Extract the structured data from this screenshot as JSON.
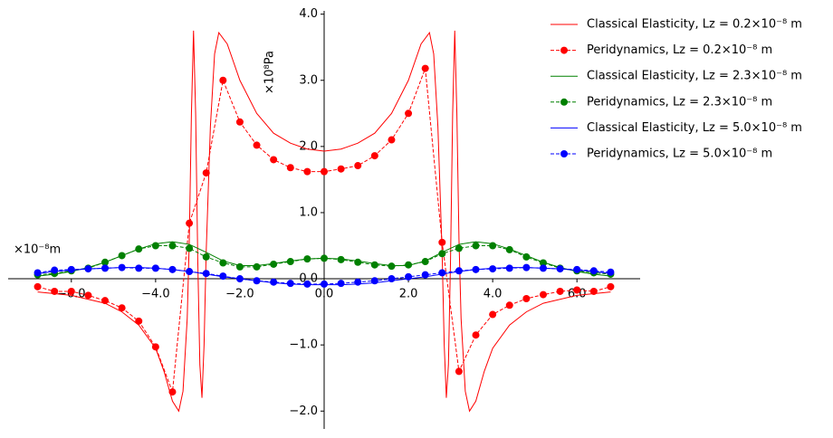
{
  "chart_data": {
    "type": "line",
    "xlabel": "×10⁻⁸m",
    "ylabel": "×10⁸Pa",
    "xlim": [
      -7.5,
      7.5
    ],
    "ylim": [
      -2.27,
      4.05
    ],
    "xticks": [
      {
        "value": -6,
        "label": "−6.0"
      },
      {
        "value": -4,
        "label": "−4.0"
      },
      {
        "value": -2,
        "label": "−2.0"
      },
      {
        "value": 0,
        "label": "0.0"
      },
      {
        "value": 2,
        "label": "2.0"
      },
      {
        "value": 4,
        "label": "4.0"
      },
      {
        "value": 6,
        "label": "6.0"
      }
    ],
    "yticks": [
      {
        "value": -2,
        "label": "−2.0"
      },
      {
        "value": -1,
        "label": "−1.0"
      },
      {
        "value": 0,
        "label": "0.0"
      },
      {
        "value": 1,
        "label": "1.0"
      },
      {
        "value": 2,
        "label": "2.0"
      },
      {
        "value": 3,
        "label": "3.0"
      },
      {
        "value": 4,
        "label": "4.0"
      }
    ],
    "legend": "upper right",
    "series": [
      {
        "name": "Classical Elasticity, Lz = 0.2×10⁻⁸ m",
        "color": "#ff0000",
        "style": "solid",
        "marker": false,
        "x": [
          -6.8,
          -6.0,
          -5.2,
          -4.8,
          -4.4,
          -4.0,
          -3.8,
          -3.6,
          -3.45,
          -3.35,
          -3.25,
          -3.2,
          -3.15,
          -3.1,
          -3.05,
          -3.0,
          -2.95,
          -2.9,
          -2.85,
          -2.8,
          -2.7,
          -2.6,
          -2.5,
          -2.3,
          -2.0,
          -1.6,
          -1.2,
          -0.8,
          -0.4,
          0,
          0.4,
          0.8,
          1.2,
          1.6,
          2.0,
          2.3,
          2.5,
          2.6,
          2.7,
          2.8,
          2.85,
          2.9,
          2.95,
          3.0,
          3.05,
          3.1,
          3.15,
          3.2,
          3.25,
          3.35,
          3.45,
          3.6,
          3.8,
          4.0,
          4.4,
          4.8,
          5.2,
          6.0,
          6.8
        ],
        "values": [
          -0.2,
          -0.25,
          -0.37,
          -0.5,
          -0.7,
          -1.05,
          -1.4,
          -1.85,
          -2.0,
          -1.7,
          -0.6,
          0.6,
          2.5,
          3.75,
          2.5,
          0.3,
          -1.3,
          -1.8,
          -1.0,
          0.4,
          2.3,
          3.4,
          3.72,
          3.55,
          3.0,
          2.5,
          2.2,
          2.05,
          1.96,
          1.93,
          1.96,
          2.05,
          2.2,
          2.5,
          3.0,
          3.55,
          3.72,
          3.4,
          2.3,
          0.4,
          -1.0,
          -1.8,
          -1.3,
          0.3,
          2.5,
          3.75,
          2.5,
          0.6,
          -0.6,
          -1.7,
          -2.0,
          -1.85,
          -1.4,
          -1.05,
          -0.7,
          -0.5,
          -0.37,
          -0.25,
          -0.2
        ]
      },
      {
        "name": "Peridynamics, Lz = 0.2×10⁻⁸ m",
        "color": "#ff0000",
        "style": "dashed",
        "marker": true,
        "x": [
          -6.8,
          -6.4,
          -6.0,
          -5.6,
          -5.2,
          -4.8,
          -4.4,
          -4.0,
          -3.6,
          -3.2,
          -2.8,
          -2.4,
          -2.0,
          -1.6,
          -1.2,
          -0.8,
          -0.4,
          0,
          0.4,
          0.8,
          1.2,
          1.6,
          2.0,
          2.4,
          2.8,
          3.2,
          3.6,
          4.0,
          4.4,
          4.8,
          5.2,
          5.6,
          6.0,
          6.4,
          6.8
        ],
        "values": [
          -0.12,
          -0.19,
          -0.19,
          -0.25,
          -0.33,
          -0.44,
          -0.64,
          -1.03,
          -1.71,
          0.84,
          1.6,
          3.0,
          2.37,
          2.02,
          1.8,
          1.68,
          1.62,
          1.62,
          1.66,
          1.71,
          1.86,
          2.1,
          2.5,
          3.18,
          0.55,
          -1.4,
          -0.85,
          -0.54,
          -0.4,
          -0.3,
          -0.24,
          -0.19,
          -0.17,
          -0.19,
          -0.12
        ]
      },
      {
        "name": "Classical Elasticity, Lz = 2.3×10⁻⁸ m",
        "color": "#008000",
        "style": "solid",
        "marker": false,
        "x": [
          -6.8,
          -6.4,
          -6.0,
          -5.6,
          -5.2,
          -4.8,
          -4.4,
          -4.0,
          -3.6,
          -3.2,
          -2.8,
          -2.4,
          -2.0,
          -1.6,
          -1.2,
          -0.8,
          -0.4,
          0,
          0.4,
          0.8,
          1.2,
          1.6,
          2.0,
          2.4,
          2.8,
          3.2,
          3.6,
          4.0,
          4.4,
          4.8,
          5.2,
          5.6,
          6.0,
          6.4,
          6.8
        ],
        "values": [
          0.04,
          0.07,
          0.11,
          0.17,
          0.25,
          0.35,
          0.45,
          0.53,
          0.56,
          0.52,
          0.4,
          0.27,
          0.2,
          0.2,
          0.23,
          0.27,
          0.3,
          0.31,
          0.3,
          0.27,
          0.23,
          0.2,
          0.2,
          0.27,
          0.4,
          0.52,
          0.56,
          0.53,
          0.45,
          0.35,
          0.25,
          0.17,
          0.11,
          0.07,
          0.04
        ]
      },
      {
        "name": "Peridynamics, Lz = 2.3×10⁻⁸ m",
        "color": "#008000",
        "style": "dashed",
        "marker": true,
        "x": [
          -6.8,
          -6.4,
          -6.0,
          -5.6,
          -5.2,
          -4.8,
          -4.4,
          -4.0,
          -3.6,
          -3.2,
          -2.8,
          -2.4,
          -2.0,
          -1.6,
          -1.2,
          -0.8,
          -0.4,
          0,
          0.4,
          0.8,
          1.2,
          1.6,
          2.0,
          2.4,
          2.8,
          3.2,
          3.6,
          4.0,
          4.4,
          4.8,
          5.2,
          5.6,
          6.0,
          6.4,
          6.8
        ],
        "values": [
          0.06,
          0.08,
          0.12,
          0.16,
          0.25,
          0.35,
          0.45,
          0.5,
          0.5,
          0.46,
          0.33,
          0.24,
          0.18,
          0.18,
          0.22,
          0.26,
          0.3,
          0.31,
          0.29,
          0.25,
          0.21,
          0.19,
          0.21,
          0.26,
          0.38,
          0.46,
          0.5,
          0.5,
          0.44,
          0.33,
          0.24,
          0.16,
          0.12,
          0.09,
          0.07
        ]
      },
      {
        "name": "Classical Elasticity, Lz = 5.0×10⁻⁸ m",
        "color": "#0000ff",
        "style": "solid",
        "marker": false,
        "x": [
          -6.8,
          -6.4,
          -6.0,
          -5.6,
          -5.2,
          -4.8,
          -4.4,
          -4.0,
          -3.6,
          -3.2,
          -2.8,
          -2.4,
          -2.0,
          -1.6,
          -1.2,
          -0.8,
          -0.4,
          0,
          0.4,
          0.8,
          1.2,
          1.6,
          2.0,
          2.4,
          2.8,
          3.2,
          3.6,
          4.0,
          4.4,
          4.8,
          5.2,
          5.6,
          6.0,
          6.4,
          6.8
        ],
        "values": [
          0.08,
          0.11,
          0.13,
          0.15,
          0.16,
          0.17,
          0.17,
          0.16,
          0.14,
          0.11,
          0.07,
          0.03,
          0.0,
          -0.03,
          -0.06,
          -0.08,
          -0.09,
          -0.09,
          -0.09,
          -0.08,
          -0.06,
          -0.03,
          0.0,
          0.03,
          0.07,
          0.11,
          0.14,
          0.16,
          0.17,
          0.17,
          0.16,
          0.15,
          0.13,
          0.11,
          0.08
        ]
      },
      {
        "name": "Peridynamics, Lz = 5.0×10⁻⁸ m",
        "color": "#0000ff",
        "style": "dashed",
        "marker": true,
        "x": [
          -6.8,
          -6.4,
          -6.0,
          -5.6,
          -5.2,
          -4.8,
          -4.4,
          -4.0,
          -3.6,
          -3.2,
          -2.8,
          -2.4,
          -2.0,
          -1.6,
          -1.2,
          -0.8,
          -0.4,
          0,
          0.4,
          0.8,
          1.2,
          1.6,
          2.0,
          2.4,
          2.8,
          3.2,
          3.6,
          4.0,
          4.4,
          4.8,
          5.2,
          5.6,
          6.0,
          6.4,
          6.8
        ],
        "values": [
          0.09,
          0.13,
          0.14,
          0.15,
          0.16,
          0.17,
          0.16,
          0.16,
          0.14,
          0.11,
          0.08,
          0.04,
          0.0,
          -0.03,
          -0.05,
          -0.07,
          -0.08,
          -0.08,
          -0.07,
          -0.05,
          -0.03,
          0.0,
          0.03,
          0.06,
          0.09,
          0.12,
          0.14,
          0.15,
          0.16,
          0.17,
          0.16,
          0.15,
          0.14,
          0.12,
          0.1
        ]
      }
    ]
  }
}
